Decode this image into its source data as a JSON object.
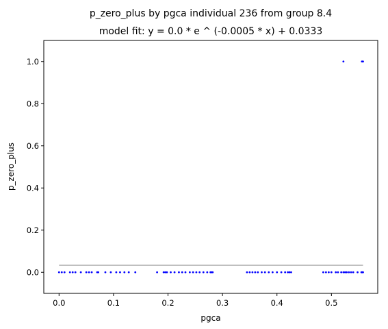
{
  "chart_data": {
    "type": "scatter",
    "title": "p_zero_plus by pgca individual 236 from group 8.4",
    "subtitle": "model fit: y = 0.0 * e ^ (-0.0005 * x) + 0.0333",
    "xlabel": "pgca",
    "ylabel": "p_zero_plus",
    "xlim": [
      -0.028,
      0.585
    ],
    "ylim": [
      -0.1,
      1.1
    ],
    "x_ticks": [
      0.0,
      0.1,
      0.2,
      0.3,
      0.4,
      0.5
    ],
    "x_tick_labels": [
      "0.0",
      "0.1",
      "0.2",
      "0.3",
      "0.4",
      "0.5"
    ],
    "y_ticks": [
      0.0,
      0.2,
      0.4,
      0.6,
      0.8,
      1.0
    ],
    "y_tick_labels": [
      "0.0",
      "0.2",
      "0.4",
      "0.6",
      "0.8",
      "1.0"
    ],
    "grid": false,
    "colors": {
      "points": "#0000ff",
      "fit_line": "#aaaaaa"
    },
    "series": [
      {
        "kind": "points",
        "x": [
          0.0,
          0.005,
          0.01,
          0.02,
          0.025,
          0.03,
          0.04,
          0.05,
          0.055,
          0.06,
          0.07,
          0.072,
          0.085,
          0.095,
          0.105,
          0.112,
          0.12,
          0.128,
          0.14,
          0.18,
          0.192,
          0.195,
          0.198,
          0.205,
          0.212,
          0.22,
          0.226,
          0.232,
          0.24,
          0.246,
          0.252,
          0.258,
          0.265,
          0.272,
          0.278,
          0.28,
          0.282,
          0.345,
          0.35,
          0.355,
          0.36,
          0.365,
          0.372,
          0.378,
          0.385,
          0.392,
          0.4,
          0.408,
          0.415,
          0.42,
          0.423,
          0.426,
          0.485,
          0.49,
          0.495,
          0.5,
          0.508,
          0.512,
          0.518,
          0.522,
          0.525,
          0.528,
          0.532,
          0.536,
          0.54,
          0.548,
          0.555,
          0.556,
          0.557,
          0.558
        ],
        "y": [
          0,
          0,
          0,
          0,
          0,
          0,
          0,
          0,
          0,
          0,
          0,
          0,
          0,
          0,
          0,
          0,
          0,
          0,
          0,
          0,
          0,
          0,
          0,
          0,
          0,
          0,
          0,
          0,
          0,
          0,
          0,
          0,
          0,
          0,
          0,
          0,
          0,
          0,
          0,
          0,
          0,
          0,
          0,
          0,
          0,
          0,
          0,
          0,
          0,
          0,
          0,
          0,
          0,
          0,
          0,
          0,
          0,
          0,
          0,
          0,
          0,
          0,
          0,
          0,
          0,
          0,
          0,
          0,
          0,
          0
        ]
      },
      {
        "kind": "points",
        "x": [
          0.522,
          0.556,
          0.557,
          0.558
        ],
        "y": [
          1.0,
          1.0,
          1.0,
          1.0
        ]
      },
      {
        "kind": "fit_line",
        "x": [
          0.0,
          0.558
        ],
        "y": [
          0.0333,
          0.0333
        ]
      }
    ]
  }
}
